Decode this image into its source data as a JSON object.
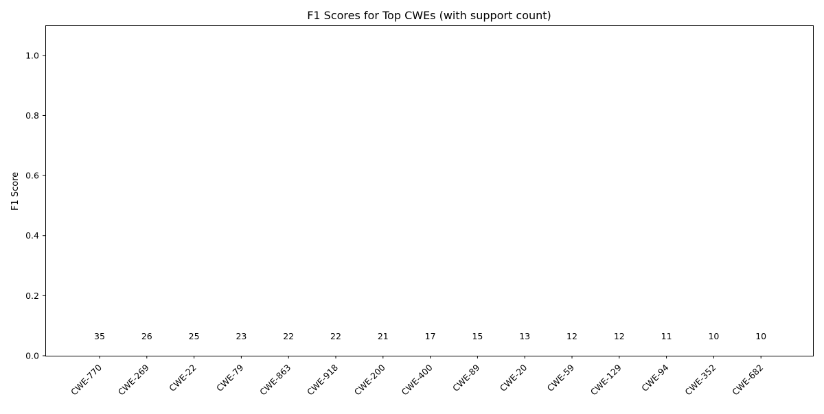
{
  "chart_data": {
    "type": "bar",
    "title": "F1 Scores for Top CWEs (with support count)",
    "xlabel": "",
    "ylabel": "F1 Score",
    "ylim": [
      0,
      1.1
    ],
    "yticks": [
      "0.0",
      "0.2",
      "0.4",
      "0.6",
      "0.8",
      "1.0"
    ],
    "ytick_values": [
      0,
      0.2,
      0.4,
      0.6,
      0.8,
      1.0
    ],
    "categories": [
      "CWE-770",
      "CWE-269",
      "CWE-22",
      "CWE-79",
      "CWE-863",
      "CWE-918",
      "CWE-200",
      "CWE-400",
      "CWE-89",
      "CWE-20",
      "CWE-59",
      "CWE-129",
      "CWE-94",
      "CWE-352",
      "CWE-682"
    ],
    "values": [
      0,
      0,
      0,
      0,
      0,
      0,
      0,
      0,
      0,
      0,
      0,
      0,
      0,
      0,
      0
    ],
    "support_labels": [
      "35",
      "26",
      "25",
      "23",
      "22",
      "22",
      "21",
      "17",
      "15",
      "13",
      "12",
      "12",
      "11",
      "10",
      "10"
    ],
    "grid": false,
    "legend": "none",
    "bar_color": "#1f77b4"
  }
}
